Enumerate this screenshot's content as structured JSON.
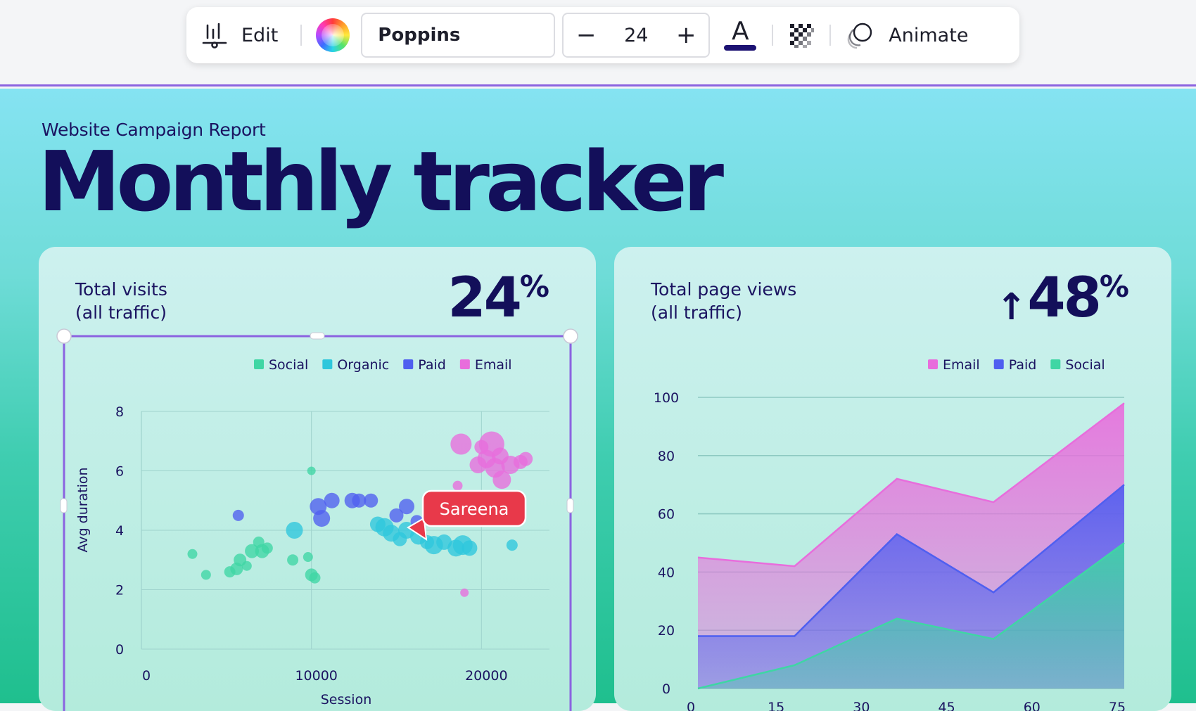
{
  "toolbar": {
    "edit_label": "Edit",
    "font_name": "Poppins",
    "font_size": "24",
    "minus_symbol": "−",
    "plus_symbol": "+",
    "text_color_glyph": "A",
    "text_color": "#1c1273",
    "animate_label": "Animate",
    "icons": [
      "chart-edit-icon",
      "color-wheel-icon",
      "text-color-icon",
      "transparency-icon",
      "animate-icon"
    ]
  },
  "page": {
    "subtitle": "Website Campaign Report",
    "title": "Monthly tracker"
  },
  "cards": {
    "left": {
      "label": "Total visits\n(all traffic)",
      "stat": "24",
      "stat_unit": "%"
    },
    "right": {
      "label": "Total page views\n(all traffic)",
      "stat": "48",
      "stat_unit": "%",
      "stat_arrow": "↑"
    }
  },
  "collaborator": {
    "name": "Sareena",
    "color": "#e8394a"
  },
  "colors": {
    "accent": "#8b63e0",
    "social": "#3fd6a4",
    "organic": "#2ec7dc",
    "paid": "#4f5ff0",
    "email": "#e86ddc",
    "title": "#130f5a"
  },
  "chart_data": [
    {
      "type": "scatter",
      "title": "",
      "xlabel": "Session",
      "ylabel": "Avg duration",
      "xlim": [
        0,
        24000
      ],
      "ylim": [
        0,
        8
      ],
      "xticks": [
        "0",
        "10000",
        "20000"
      ],
      "yticks": [
        "0",
        "2",
        "4",
        "6",
        "8"
      ],
      "legend": [
        "Social",
        "Organic",
        "Paid",
        "Email"
      ],
      "legend_position": "top-right",
      "grid": true,
      "series": [
        {
          "name": "Social",
          "color": "#3fd6a4",
          "points": [
            [
              3000,
              3.2,
              7
            ],
            [
              3800,
              2.5,
              7
            ],
            [
              5200,
              2.6,
              8
            ],
            [
              5600,
              2.7,
              9
            ],
            [
              5800,
              3.0,
              9
            ],
            [
              6200,
              2.8,
              7
            ],
            [
              6500,
              3.3,
              10
            ],
            [
              6900,
              3.6,
              8
            ],
            [
              7100,
              3.3,
              10
            ],
            [
              7400,
              3.4,
              8
            ],
            [
              8900,
              3.0,
              8
            ],
            [
              9800,
              3.1,
              7
            ],
            [
              10000,
              2.5,
              9
            ],
            [
              10200,
              2.4,
              8
            ],
            [
              10000,
              6.0,
              6
            ]
          ]
        },
        {
          "name": "Organic",
          "color": "#2ec7dc",
          "points": [
            [
              9000,
              4.0,
              12
            ],
            [
              13900,
              4.2,
              11
            ],
            [
              14300,
              4.1,
              13
            ],
            [
              14700,
              3.9,
              12
            ],
            [
              15200,
              3.7,
              10
            ],
            [
              15600,
              4.0,
              12
            ],
            [
              16300,
              3.8,
              12
            ],
            [
              16800,
              3.6,
              10
            ],
            [
              17200,
              3.5,
              13
            ],
            [
              17800,
              3.6,
              11
            ],
            [
              18500,
              3.4,
              12
            ],
            [
              18900,
              3.5,
              14
            ],
            [
              19300,
              3.4,
              11
            ],
            [
              21800,
              3.5,
              8
            ]
          ]
        },
        {
          "name": "Paid",
          "color": "#4f5ff0",
          "points": [
            [
              5700,
              4.5,
              8
            ],
            [
              10400,
              4.8,
              12
            ],
            [
              10600,
              4.4,
              12
            ],
            [
              11200,
              5.0,
              11
            ],
            [
              12400,
              5.0,
              11
            ],
            [
              12800,
              5.0,
              10
            ],
            [
              13500,
              5.0,
              10
            ],
            [
              15000,
              4.5,
              10
            ],
            [
              15600,
              4.8,
              11
            ],
            [
              16200,
              4.3,
              9
            ]
          ]
        },
        {
          "name": "Email",
          "color": "#e86ddc",
          "points": [
            [
              18600,
              5.5,
              7
            ],
            [
              18800,
              6.9,
              15
            ],
            [
              19800,
              6.2,
              12
            ],
            [
              20300,
              6.4,
              13
            ],
            [
              20600,
              6.9,
              18
            ],
            [
              20800,
              6.1,
              14
            ],
            [
              21100,
              6.5,
              12
            ],
            [
              21200,
              5.7,
              13
            ],
            [
              21700,
              6.2,
              13
            ],
            [
              22300,
              6.3,
              10
            ],
            [
              22600,
              6.4,
              10
            ],
            [
              20000,
              6.8,
              10
            ],
            [
              19000,
              1.9,
              6
            ]
          ]
        }
      ]
    },
    {
      "type": "area",
      "title": "",
      "xlabel": "",
      "ylabel": "",
      "xlim": [
        0,
        75
      ],
      "ylim": [
        0,
        100
      ],
      "xticks": [
        "0",
        "15",
        "30",
        "45",
        "60",
        "75"
      ],
      "yticks": [
        "0",
        "20",
        "40",
        "60",
        "80",
        "100"
      ],
      "legend": [
        "Email",
        "Paid",
        "Social"
      ],
      "legend_position": "top-right",
      "grid": true,
      "stacked": false,
      "x": [
        0,
        17,
        35,
        52,
        75
      ],
      "series": [
        {
          "name": "Email",
          "color": "#e86ddc",
          "values": [
            45,
            42,
            72,
            64,
            98
          ]
        },
        {
          "name": "Paid",
          "color": "#4f5ff0",
          "values": [
            18,
            18,
            53,
            33,
            70
          ]
        },
        {
          "name": "Social",
          "color": "#3fd6a4",
          "values": [
            0,
            8,
            24,
            17,
            50
          ]
        }
      ]
    }
  ]
}
